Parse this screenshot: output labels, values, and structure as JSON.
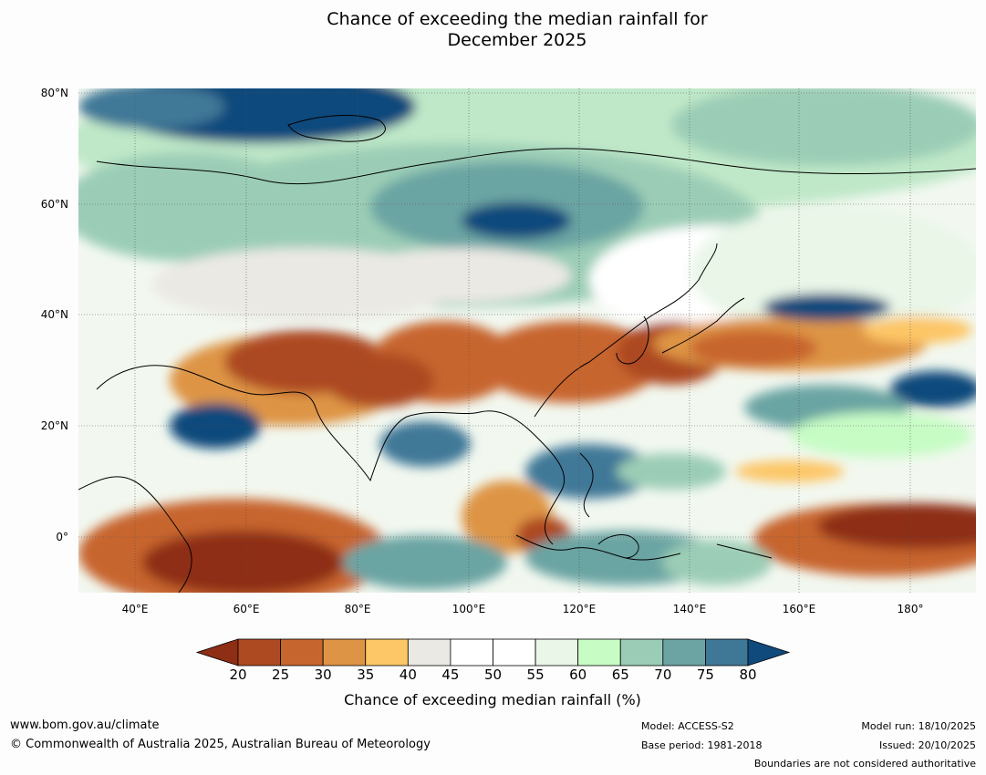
{
  "title_line1": "Chance of exceeding the median rainfall for",
  "title_line2": "December 2025",
  "lat_labels": [
    "80°N",
    "60°N",
    "40°N",
    "20°N",
    "0°"
  ],
  "lon_labels": [
    "40°E",
    "60°E",
    "80°E",
    "100°E",
    "120°E",
    "140°E",
    "160°E",
    "180°"
  ],
  "colorbar": {
    "ticks": [
      "20",
      "25",
      "30",
      "35",
      "40",
      "45",
      "50",
      "55",
      "60",
      "65",
      "70",
      "75",
      "80"
    ],
    "colors": [
      "#8e2e14",
      "#ad4a22",
      "#c7652e",
      "#de9445",
      "#fdc666",
      "#ebe9e4",
      "#ffffff",
      "#ffffff",
      "#e9f6e8",
      "#c7fcc5",
      "#9bcdb6",
      "#6ba4a3",
      "#3f7897",
      "#104a7c"
    ],
    "title": "Chance of exceeding median rainfall (%)"
  },
  "footer": {
    "website": "www.bom.gov.au/climate",
    "copyright": "© Commonwealth of Australia 2025, Australian Bureau of Meteorology",
    "model": "Model: ACCESS-S2",
    "base_period": "Base period: 1981-2018",
    "model_run": "Model run: 18/10/2025",
    "issued": "Issued: 20/10/2025",
    "disclaimer": "Boundaries are not considered authoritative"
  }
}
